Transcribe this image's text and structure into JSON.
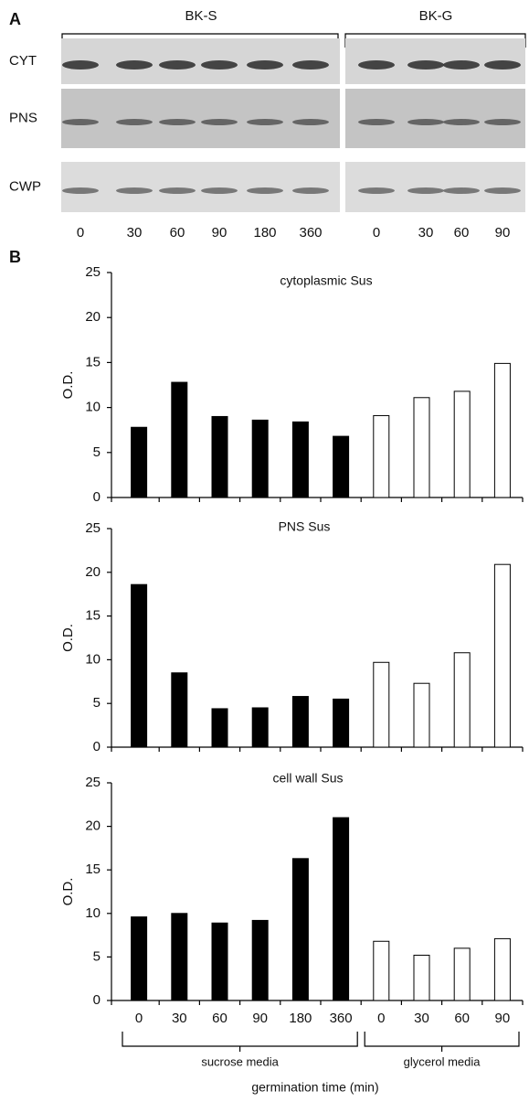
{
  "blot": {
    "label": "A",
    "groups": [
      "BK-S",
      "BK-G"
    ],
    "rows": [
      "CYT",
      "PNS",
      "CWP"
    ],
    "lanes": [
      "0",
      "30",
      "60",
      "90",
      "180",
      "360",
      "0",
      "30",
      "60",
      "90"
    ]
  },
  "panel_b": {
    "label": "B",
    "group_labels": [
      "sucrose media",
      "glycerol media"
    ],
    "xlabel": "germination time (min)"
  },
  "chart_data": [
    {
      "type": "bar",
      "title": "cytoplasmic Sus",
      "ylabel": "O.D.",
      "categories": [
        null,
        null,
        null,
        null,
        null,
        null,
        null,
        null,
        null,
        null
      ],
      "values": [
        7.8,
        12.8,
        9.0,
        8.6,
        8.4,
        6.8,
        9.1,
        11.1,
        11.8,
        14.9
      ],
      "colors": [
        "#000000",
        "#000000",
        "#000000",
        "#000000",
        "#000000",
        "#000000",
        "#ffffff",
        "#ffffff",
        "#ffffff",
        "#ffffff"
      ],
      "ylim": [
        0,
        25
      ],
      "yticks": [
        0,
        5,
        10,
        15,
        20,
        25
      ],
      "grid": false
    },
    {
      "type": "bar",
      "title": "PNS Sus",
      "ylabel": "O.D.",
      "categories": [
        null,
        null,
        null,
        null,
        null,
        null,
        null,
        null,
        null,
        null
      ],
      "values": [
        18.6,
        8.5,
        4.4,
        4.5,
        5.8,
        5.5,
        9.7,
        7.3,
        10.8,
        20.9
      ],
      "colors": [
        "#000000",
        "#000000",
        "#000000",
        "#000000",
        "#000000",
        "#000000",
        "#ffffff",
        "#ffffff",
        "#ffffff",
        "#ffffff"
      ],
      "ylim": [
        0,
        25
      ],
      "yticks": [
        0,
        5,
        10,
        15,
        20,
        25
      ],
      "grid": false
    },
    {
      "type": "bar",
      "title": "cell wall Sus",
      "ylabel": "O.D.",
      "categories": [
        "0",
        "30",
        "60",
        "90",
        "180",
        "360",
        "0",
        "30",
        "60",
        "90"
      ],
      "values": [
        9.6,
        10.0,
        8.9,
        9.2,
        16.3,
        21.0,
        6.8,
        5.2,
        6.0,
        7.1
      ],
      "colors": [
        "#000000",
        "#000000",
        "#000000",
        "#000000",
        "#000000",
        "#000000",
        "#ffffff",
        "#ffffff",
        "#ffffff",
        "#ffffff"
      ],
      "ylim": [
        0,
        25
      ],
      "yticks": [
        0,
        5,
        10,
        15,
        20,
        25
      ],
      "grid": false
    }
  ]
}
